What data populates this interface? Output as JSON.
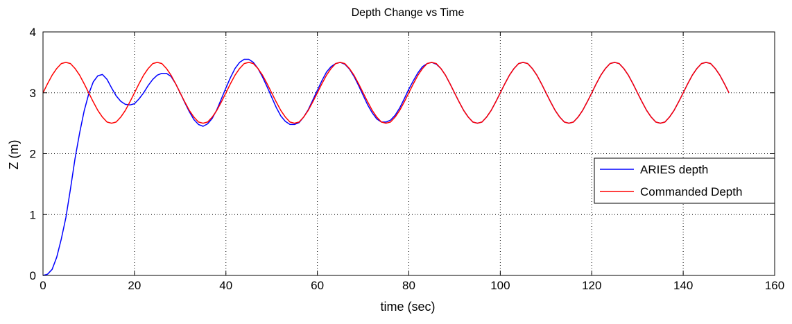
{
  "chart_data": {
    "type": "line",
    "title": "Depth Change vs Time",
    "xlabel": "time (sec)",
    "ylabel": "Z (m)",
    "xlim": [
      0,
      160
    ],
    "ylim": [
      0,
      4
    ],
    "xticks": [
      0,
      20,
      40,
      60,
      80,
      100,
      120,
      140,
      160
    ],
    "yticks": [
      0,
      1,
      2,
      3,
      4
    ],
    "grid": true,
    "legend_position": "right",
    "series": [
      {
        "name": "ARIES depth",
        "color": "#0000ff",
        "x": [
          0,
          1,
          2,
          3,
          4,
          5,
          6,
          7,
          8,
          9,
          10,
          11,
          12,
          13,
          14,
          15,
          16,
          17,
          18,
          19,
          20,
          21,
          22,
          23,
          24,
          25,
          26,
          27,
          28,
          29,
          30,
          31,
          32,
          33,
          34,
          35,
          36,
          37,
          38,
          39,
          40,
          41,
          42,
          43,
          44,
          45,
          46,
          47,
          48,
          49,
          50,
          51,
          52,
          53,
          54,
          55,
          56,
          57,
          58,
          59,
          60,
          61,
          62,
          63,
          64,
          65,
          66,
          67,
          68,
          69,
          70,
          71,
          72,
          73,
          74,
          75,
          76,
          77,
          78,
          79,
          80,
          81,
          82,
          83,
          84,
          85,
          86,
          87,
          88,
          89,
          90,
          91,
          92,
          93,
          94,
          95,
          96,
          97,
          98,
          99,
          100,
          101,
          102,
          103,
          104,
          105,
          106,
          107,
          108,
          109,
          110,
          111,
          112,
          113,
          114,
          115,
          116,
          117,
          118,
          119,
          120,
          121,
          122,
          123,
          124,
          125,
          126,
          127,
          128,
          129,
          130,
          131,
          132,
          133,
          134,
          135,
          136,
          137,
          138,
          139,
          140,
          141,
          142,
          143,
          144,
          145,
          146,
          147,
          148,
          149,
          150
        ],
        "y": [
          0.0,
          0.02,
          0.1,
          0.3,
          0.6,
          0.95,
          1.42,
          1.92,
          2.34,
          2.7,
          2.98,
          3.18,
          3.28,
          3.3,
          3.22,
          3.08,
          2.95,
          2.86,
          2.81,
          2.8,
          2.82,
          2.9,
          3.0,
          3.12,
          3.22,
          3.29,
          3.32,
          3.32,
          3.27,
          3.15,
          3.0,
          2.84,
          2.69,
          2.56,
          2.48,
          2.45,
          2.49,
          2.58,
          2.72,
          2.9,
          3.08,
          3.25,
          3.4,
          3.5,
          3.55,
          3.55,
          3.5,
          3.4,
          3.26,
          3.1,
          2.93,
          2.76,
          2.62,
          2.53,
          2.48,
          2.48,
          2.51,
          2.6,
          2.72,
          2.88,
          3.04,
          3.2,
          3.34,
          3.43,
          3.48,
          3.5,
          3.47,
          3.39,
          3.27,
          3.12,
          2.96,
          2.8,
          2.67,
          2.57,
          2.52,
          2.52,
          2.55,
          2.63,
          2.75,
          2.9,
          3.06,
          3.2,
          3.33,
          3.43,
          3.48,
          3.5,
          3.47,
          3.4,
          3.29,
          3.15,
          3.0,
          2.85,
          2.71,
          2.6,
          2.52,
          2.5,
          2.52,
          2.6,
          2.71,
          2.85,
          3.0,
          3.15,
          3.29,
          3.4,
          3.48,
          3.5,
          3.48,
          3.4,
          3.29,
          3.15,
          3.0,
          2.85,
          2.71,
          2.6,
          2.52,
          2.5,
          2.52,
          2.6,
          2.71,
          2.85,
          3.0,
          3.15,
          3.29,
          3.4,
          3.48,
          3.5,
          3.48,
          3.4,
          3.29,
          3.15,
          3.0,
          2.85,
          2.71,
          2.6,
          2.52,
          2.5,
          2.52,
          2.6,
          2.71,
          2.85,
          3.0,
          3.15,
          3.29,
          3.4,
          3.48,
          3.5,
          3.48,
          3.4,
          3.29,
          3.15,
          3.0
        ]
      },
      {
        "name": "Commanded Depth",
        "color": "#ff0000",
        "x": [
          0,
          1,
          2,
          3,
          4,
          5,
          6,
          7,
          8,
          9,
          10,
          11,
          12,
          13,
          14,
          15,
          16,
          17,
          18,
          19,
          20,
          21,
          22,
          23,
          24,
          25,
          26,
          27,
          28,
          29,
          30,
          31,
          32,
          33,
          34,
          35,
          36,
          37,
          38,
          39,
          40,
          41,
          42,
          43,
          44,
          45,
          46,
          47,
          48,
          49,
          50,
          51,
          52,
          53,
          54,
          55,
          56,
          57,
          58,
          59,
          60,
          61,
          62,
          63,
          64,
          65,
          66,
          67,
          68,
          69,
          70,
          71,
          72,
          73,
          74,
          75,
          76,
          77,
          78,
          79,
          80,
          81,
          82,
          83,
          84,
          85,
          86,
          87,
          88,
          89,
          90,
          91,
          92,
          93,
          94,
          95,
          96,
          97,
          98,
          99,
          100,
          101,
          102,
          103,
          104,
          105,
          106,
          107,
          108,
          109,
          110,
          111,
          112,
          113,
          114,
          115,
          116,
          117,
          118,
          119,
          120,
          121,
          122,
          123,
          124,
          125,
          126,
          127,
          128,
          129,
          130,
          131,
          132,
          133,
          134,
          135,
          136,
          137,
          138,
          139,
          140,
          141,
          142,
          143,
          144,
          145,
          146,
          147,
          148,
          149,
          150
        ],
        "y": [
          3.0,
          3.15,
          3.29,
          3.4,
          3.48,
          3.5,
          3.48,
          3.4,
          3.29,
          3.15,
          3.0,
          2.85,
          2.71,
          2.6,
          2.52,
          2.5,
          2.52,
          2.6,
          2.71,
          2.85,
          3.0,
          3.15,
          3.29,
          3.4,
          3.48,
          3.5,
          3.48,
          3.4,
          3.29,
          3.15,
          3.0,
          2.85,
          2.71,
          2.6,
          2.52,
          2.5,
          2.52,
          2.6,
          2.71,
          2.85,
          3.0,
          3.15,
          3.29,
          3.4,
          3.48,
          3.5,
          3.48,
          3.4,
          3.29,
          3.15,
          3.0,
          2.85,
          2.71,
          2.6,
          2.52,
          2.5,
          2.52,
          2.6,
          2.71,
          2.85,
          3.0,
          3.15,
          3.29,
          3.4,
          3.48,
          3.5,
          3.48,
          3.4,
          3.29,
          3.15,
          3.0,
          2.85,
          2.71,
          2.6,
          2.52,
          2.5,
          2.52,
          2.6,
          2.71,
          2.85,
          3.0,
          3.15,
          3.29,
          3.4,
          3.48,
          3.5,
          3.48,
          3.4,
          3.29,
          3.15,
          3.0,
          2.85,
          2.71,
          2.6,
          2.52,
          2.5,
          2.52,
          2.6,
          2.71,
          2.85,
          3.0,
          3.15,
          3.29,
          3.4,
          3.48,
          3.5,
          3.48,
          3.4,
          3.29,
          3.15,
          3.0,
          2.85,
          2.71,
          2.6,
          2.52,
          2.5,
          2.52,
          2.6,
          2.71,
          2.85,
          3.0,
          3.15,
          3.29,
          3.4,
          3.48,
          3.5,
          3.48,
          3.4,
          3.29,
          3.15,
          3.0,
          2.85,
          2.71,
          2.6,
          2.52,
          2.5,
          2.52,
          2.6,
          2.71,
          2.85,
          3.0,
          3.15,
          3.29,
          3.4,
          3.48,
          3.5,
          3.48,
          3.4,
          3.29,
          3.15,
          3.0
        ]
      }
    ]
  }
}
